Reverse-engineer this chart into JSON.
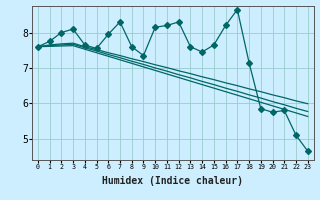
{
  "xlabel": "Humidex (Indice chaleur)",
  "bg_color": "#cceeff",
  "line_color": "#006666",
  "grid_color": "#99cccc",
  "xlim": [
    -0.5,
    23.5
  ],
  "ylim": [
    4.4,
    8.75
  ],
  "yticks": [
    5,
    6,
    7,
    8
  ],
  "xticks": [
    0,
    1,
    2,
    3,
    4,
    5,
    6,
    7,
    8,
    9,
    10,
    11,
    12,
    13,
    14,
    15,
    16,
    17,
    18,
    19,
    20,
    21,
    22,
    23
  ],
  "jagged_series": [
    7.6,
    7.75,
    8.0,
    8.1,
    7.65,
    7.55,
    7.95,
    8.3,
    7.6,
    7.35,
    8.15,
    8.2,
    8.3,
    7.6,
    7.45,
    7.65,
    8.2,
    8.65,
    7.15,
    5.85,
    5.75,
    5.8,
    5.1,
    4.65
  ],
  "smooth_series": [
    [
      7.6,
      7.65,
      7.68,
      7.7,
      7.6,
      7.52,
      7.43,
      7.35,
      7.26,
      7.18,
      7.09,
      7.01,
      6.92,
      6.84,
      6.75,
      6.67,
      6.58,
      6.5,
      6.41,
      6.33,
      6.24,
      6.16,
      6.07,
      5.99
    ],
    [
      7.6,
      7.63,
      7.65,
      7.67,
      7.57,
      7.48,
      7.38,
      7.29,
      7.19,
      7.1,
      7.0,
      6.91,
      6.81,
      6.72,
      6.62,
      6.53,
      6.43,
      6.34,
      6.24,
      6.15,
      6.05,
      5.96,
      5.86,
      5.77
    ],
    [
      7.6,
      7.61,
      7.62,
      7.63,
      7.53,
      7.43,
      7.33,
      7.23,
      7.13,
      7.03,
      6.93,
      6.83,
      6.73,
      6.63,
      6.53,
      6.43,
      6.33,
      6.23,
      6.13,
      6.03,
      5.93,
      5.83,
      5.73,
      5.63
    ]
  ],
  "marker": "D",
  "marker_size": 3.0,
  "linewidth": 0.9
}
